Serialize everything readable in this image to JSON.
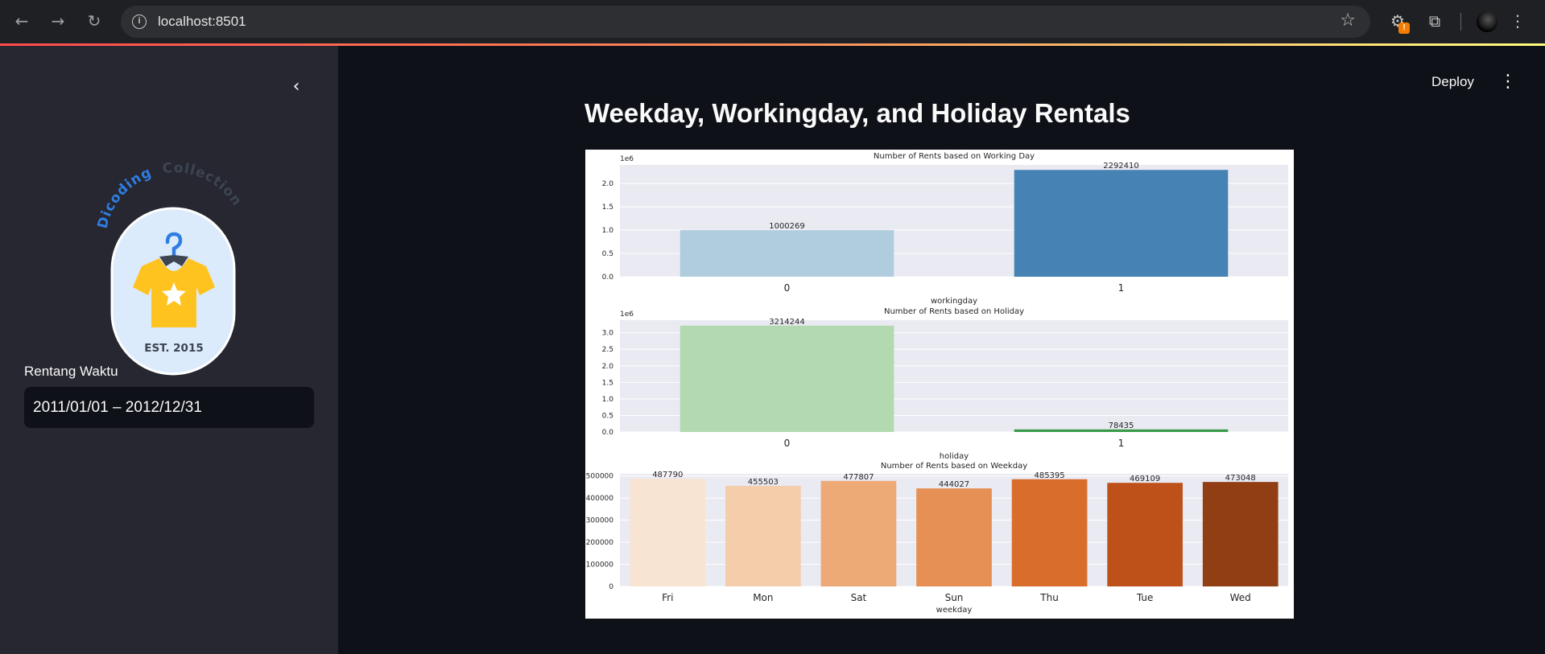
{
  "browser": {
    "url": "localhost:8501",
    "icons": {
      "back": "arrow-left-icon",
      "forward": "arrow-right-icon",
      "reload": "reload-icon",
      "info": "info-icon",
      "bookmark": "star-icon",
      "extensions": "puzzle-icon",
      "menu": "kebab-icon"
    },
    "extension_badge": "!"
  },
  "sidebar": {
    "logo": {
      "arc_text_1": "Dicoding",
      "arc_text_2": "Collection",
      "est_text": "EST. 2015",
      "colors": {
        "badge": "#dcebfb",
        "shirt": "#ffc31f",
        "hanger": "#2f7de1",
        "arc1": "#2f7de1",
        "arc2": "#3d4452"
      }
    },
    "date_filter": {
      "label": "Rentang Waktu",
      "value": "2011/01/01 – 2012/12/31"
    }
  },
  "header": {
    "deploy_label": "Deploy",
    "menu_icon": "kebab-icon"
  },
  "main": {
    "title": "Weekday, Workingday, and Holiday Rentals"
  },
  "chart_data": [
    {
      "type": "bar",
      "title": "Number of Rents based on Working Day",
      "xlabel": "workingday",
      "ylabel": "",
      "categories": [
        "0",
        "1"
      ],
      "values": [
        1000269,
        2292410
      ],
      "ylim": [
        0,
        2400000
      ],
      "y_ticks": [
        0,
        0.5,
        1.0,
        1.5,
        2.0
      ],
      "y_tick_labels": [
        "0.0",
        "0.5",
        "1.0",
        "1.5",
        "2.0"
      ],
      "y_offset_label": "1e6",
      "data_labels": [
        "1000269",
        "2292410"
      ],
      "colors": [
        "#b0cde0",
        "#4682b4"
      ],
      "grid": true
    },
    {
      "type": "bar",
      "title": "Number of Rents based on Holiday",
      "xlabel": "holiday",
      "ylabel": "",
      "categories": [
        "0",
        "1"
      ],
      "values": [
        3214244,
        78435
      ],
      "ylim": [
        0,
        3380000
      ],
      "y_ticks": [
        0,
        0.5,
        1.0,
        1.5,
        2.0,
        2.5,
        3.0
      ],
      "y_tick_labels": [
        "0.0",
        "0.5",
        "1.0",
        "1.5",
        "2.0",
        "2.5",
        "3.0"
      ],
      "y_offset_label": "1e6",
      "data_labels": [
        "3214244",
        "78435"
      ],
      "colors": [
        "#b2d9b0",
        "#3a9a4a"
      ],
      "grid": true
    },
    {
      "type": "bar",
      "title": "Number of Rents based on Weekday",
      "xlabel": "weekday",
      "ylabel": "",
      "categories": [
        "Fri",
        "Mon",
        "Sat",
        "Sun",
        "Thu",
        "Tue",
        "Wed"
      ],
      "values": [
        487790,
        455503,
        477807,
        444027,
        485395,
        469109,
        473048
      ],
      "ylim": [
        0,
        510000
      ],
      "y_ticks": [
        0,
        100000,
        200000,
        300000,
        400000,
        500000
      ],
      "y_tick_labels": [
        "0",
        "100000",
        "200000",
        "300000",
        "400000",
        "500000"
      ],
      "data_labels": [
        "487790",
        "455503",
        "477807",
        "444027",
        "485395",
        "469109",
        "473048"
      ],
      "colors": [
        "#f8e4d2",
        "#f4ceaa",
        "#eda976",
        "#e69055",
        "#d96d2c",
        "#be5119",
        "#913e14"
      ],
      "grid": true
    }
  ]
}
